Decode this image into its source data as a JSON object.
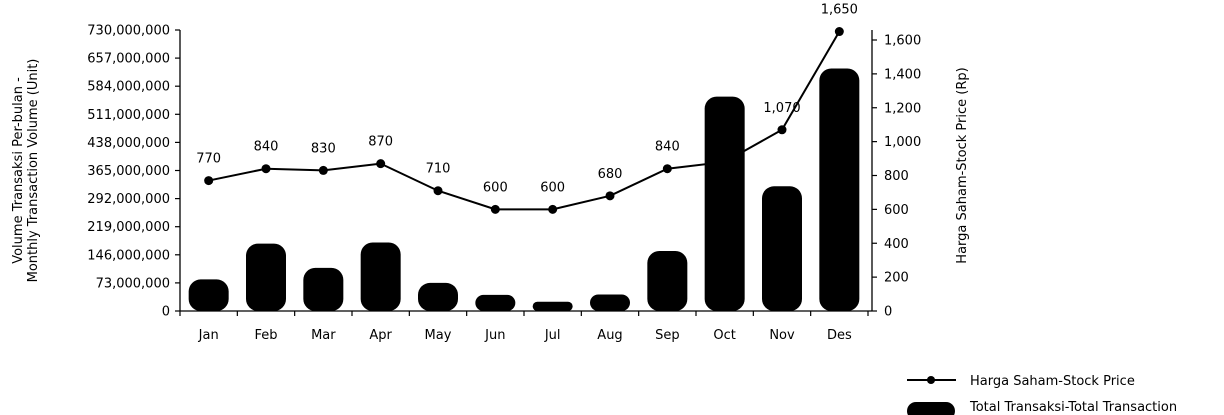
{
  "chart_data": {
    "type": "bar",
    "categories": [
      "Jan",
      "Feb",
      "Mar",
      "Apr",
      "May",
      "Jun",
      "Jul",
      "Aug",
      "Sep",
      "Oct",
      "Nov",
      "Des"
    ],
    "series": [
      {
        "name": "Total Transaksi-Total Transaction",
        "type": "bar",
        "axis": "left",
        "values": [
          82000000,
          175000000,
          112000000,
          178000000,
          73000000,
          42000000,
          24000000,
          43000000,
          156000000,
          557000000,
          324000000,
          630000000
        ]
      },
      {
        "name": "Harga Saham-Stock Price",
        "type": "line",
        "axis": "right",
        "values": [
          770,
          840,
          830,
          870,
          710,
          600,
          600,
          680,
          840,
          880,
          1070,
          1650
        ],
        "labels": [
          "770",
          "840",
          "830",
          "870",
          "710",
          "600",
          "600",
          "680",
          "840",
          "",
          "1,070",
          "1,650"
        ]
      }
    ],
    "ylabel": "Volume Transaksi Per-bulan - Monthly Transaction Volume (Unit)",
    "ylabel_lines": [
      "Volume Transaksi Per-bulan -",
      "Monthly Transaction Volume (Unit)"
    ],
    "ylim": [
      0,
      730000000
    ],
    "yticks": [
      "0",
      "73,000,000",
      "146,000,000",
      "219,000,000",
      "292,000,000",
      "365,000,000",
      "438,000,000",
      "511,000,000",
      "584,000,000",
      "657,000,000",
      "730,000,000"
    ],
    "y2label": "Harga Saham-Stock Price (Rp)",
    "y2lim": [
      0,
      1700
    ],
    "y2ticks": [
      "0",
      "200",
      "400",
      "600",
      "800",
      "1,000",
      "1,200",
      "1,400",
      "1,600"
    ],
    "grid": false,
    "legend_position": "bottom-right",
    "colors": {
      "bar": "#000000",
      "line": "#000000",
      "axis": "#000000"
    }
  }
}
